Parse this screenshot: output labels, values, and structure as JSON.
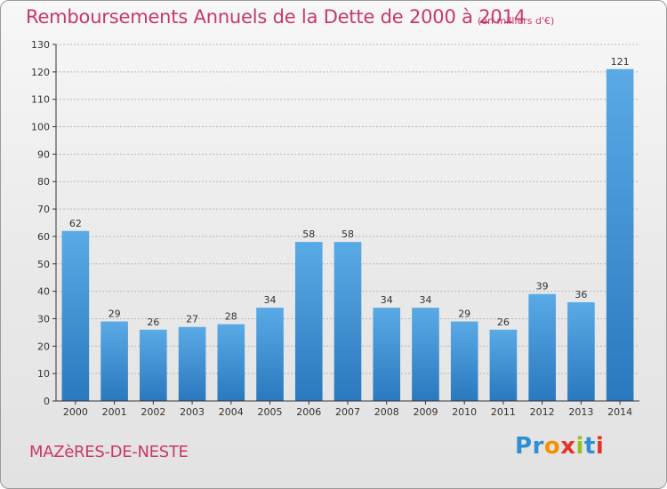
{
  "header": {
    "title": "Remboursements Annuels de la Dette de 2000 à 2014",
    "subtitle": "(en milliers d'€)"
  },
  "footer": {
    "commune": "MAZèRES-DE-NESTE",
    "logo": {
      "letters": [
        "P",
        "r",
        "o",
        "x",
        "i",
        "t",
        "i"
      ],
      "colors": [
        "#2e8fd4",
        "#2e8fd4",
        "#f39200",
        "#e6332a",
        "#95c11f",
        "#2e8fd4",
        "#e6332a"
      ]
    }
  },
  "colors": {
    "bar_light": "#5aaae6",
    "bar_dark": "#2a78be",
    "grid": "#b8b8b8",
    "axis": "#333333",
    "title": "#c8386a"
  },
  "chart_data": {
    "type": "bar",
    "title": "Remboursements Annuels de la Dette de 2000 à 2014",
    "subtitle": "(en milliers d'€)",
    "xlabel": "",
    "ylabel": "",
    "categories": [
      "2000",
      "2001",
      "2002",
      "2003",
      "2004",
      "2005",
      "2006",
      "2007",
      "2008",
      "2009",
      "2010",
      "2011",
      "2012",
      "2013",
      "2014"
    ],
    "values": [
      62,
      29,
      26,
      27,
      28,
      34,
      58,
      58,
      34,
      34,
      29,
      26,
      39,
      36,
      121
    ],
    "ylim": [
      0,
      130
    ],
    "yticks": [
      0,
      10,
      20,
      30,
      40,
      50,
      60,
      70,
      80,
      90,
      100,
      110,
      120,
      130
    ],
    "grid": true,
    "legend": "none"
  }
}
